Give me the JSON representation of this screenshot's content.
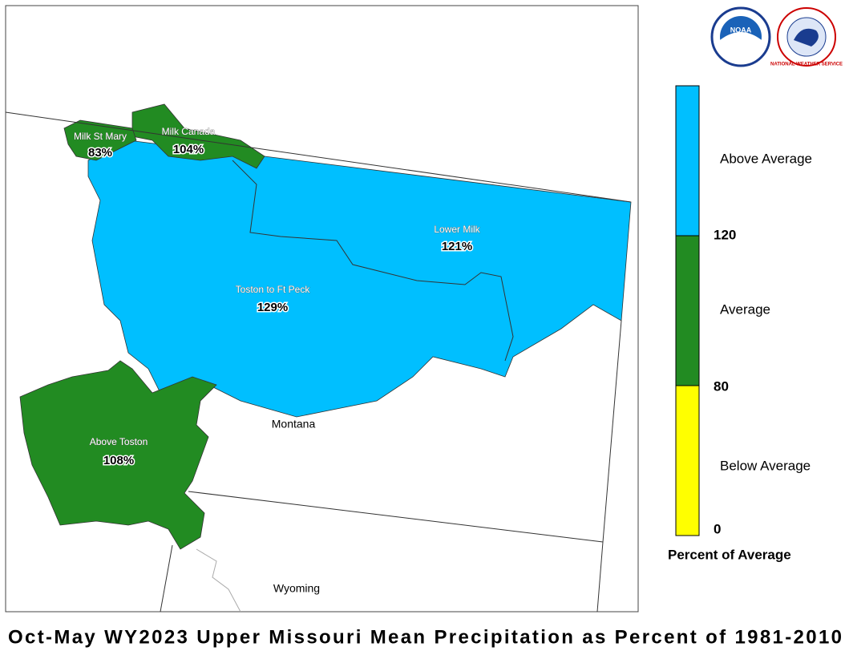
{
  "title": "Oct-May WY2023 Upper Missouri Mean Precipitation as Percent of 1981-2010",
  "logos": {
    "noaa": "NOAA",
    "nws": "NATIONAL WEATHER SERVICE"
  },
  "regions": [
    {
      "name": "Milk St Mary",
      "label": "83%",
      "color": "#228b22"
    },
    {
      "name": "Milk Canada",
      "label": "104%",
      "color": "#228b22"
    },
    {
      "name": "Lower Milk",
      "label": "121%",
      "color": "#00bfff"
    },
    {
      "name": "Toston to Ft Peck",
      "label": "129%",
      "color": "#00bfff"
    },
    {
      "name": "Above Toston",
      "label": "108%",
      "color": "#228b22"
    }
  ],
  "states": [
    "Montana",
    "Wyoming"
  ],
  "legend": {
    "title": "Percent of Average",
    "classes": [
      {
        "name": "Above Average",
        "color": "#00bfff"
      },
      {
        "name": "Average",
        "color": "#228b22"
      },
      {
        "name": "Below Average",
        "color": "#ffff00"
      }
    ],
    "breaks": [
      "120",
      "80",
      "0"
    ]
  }
}
